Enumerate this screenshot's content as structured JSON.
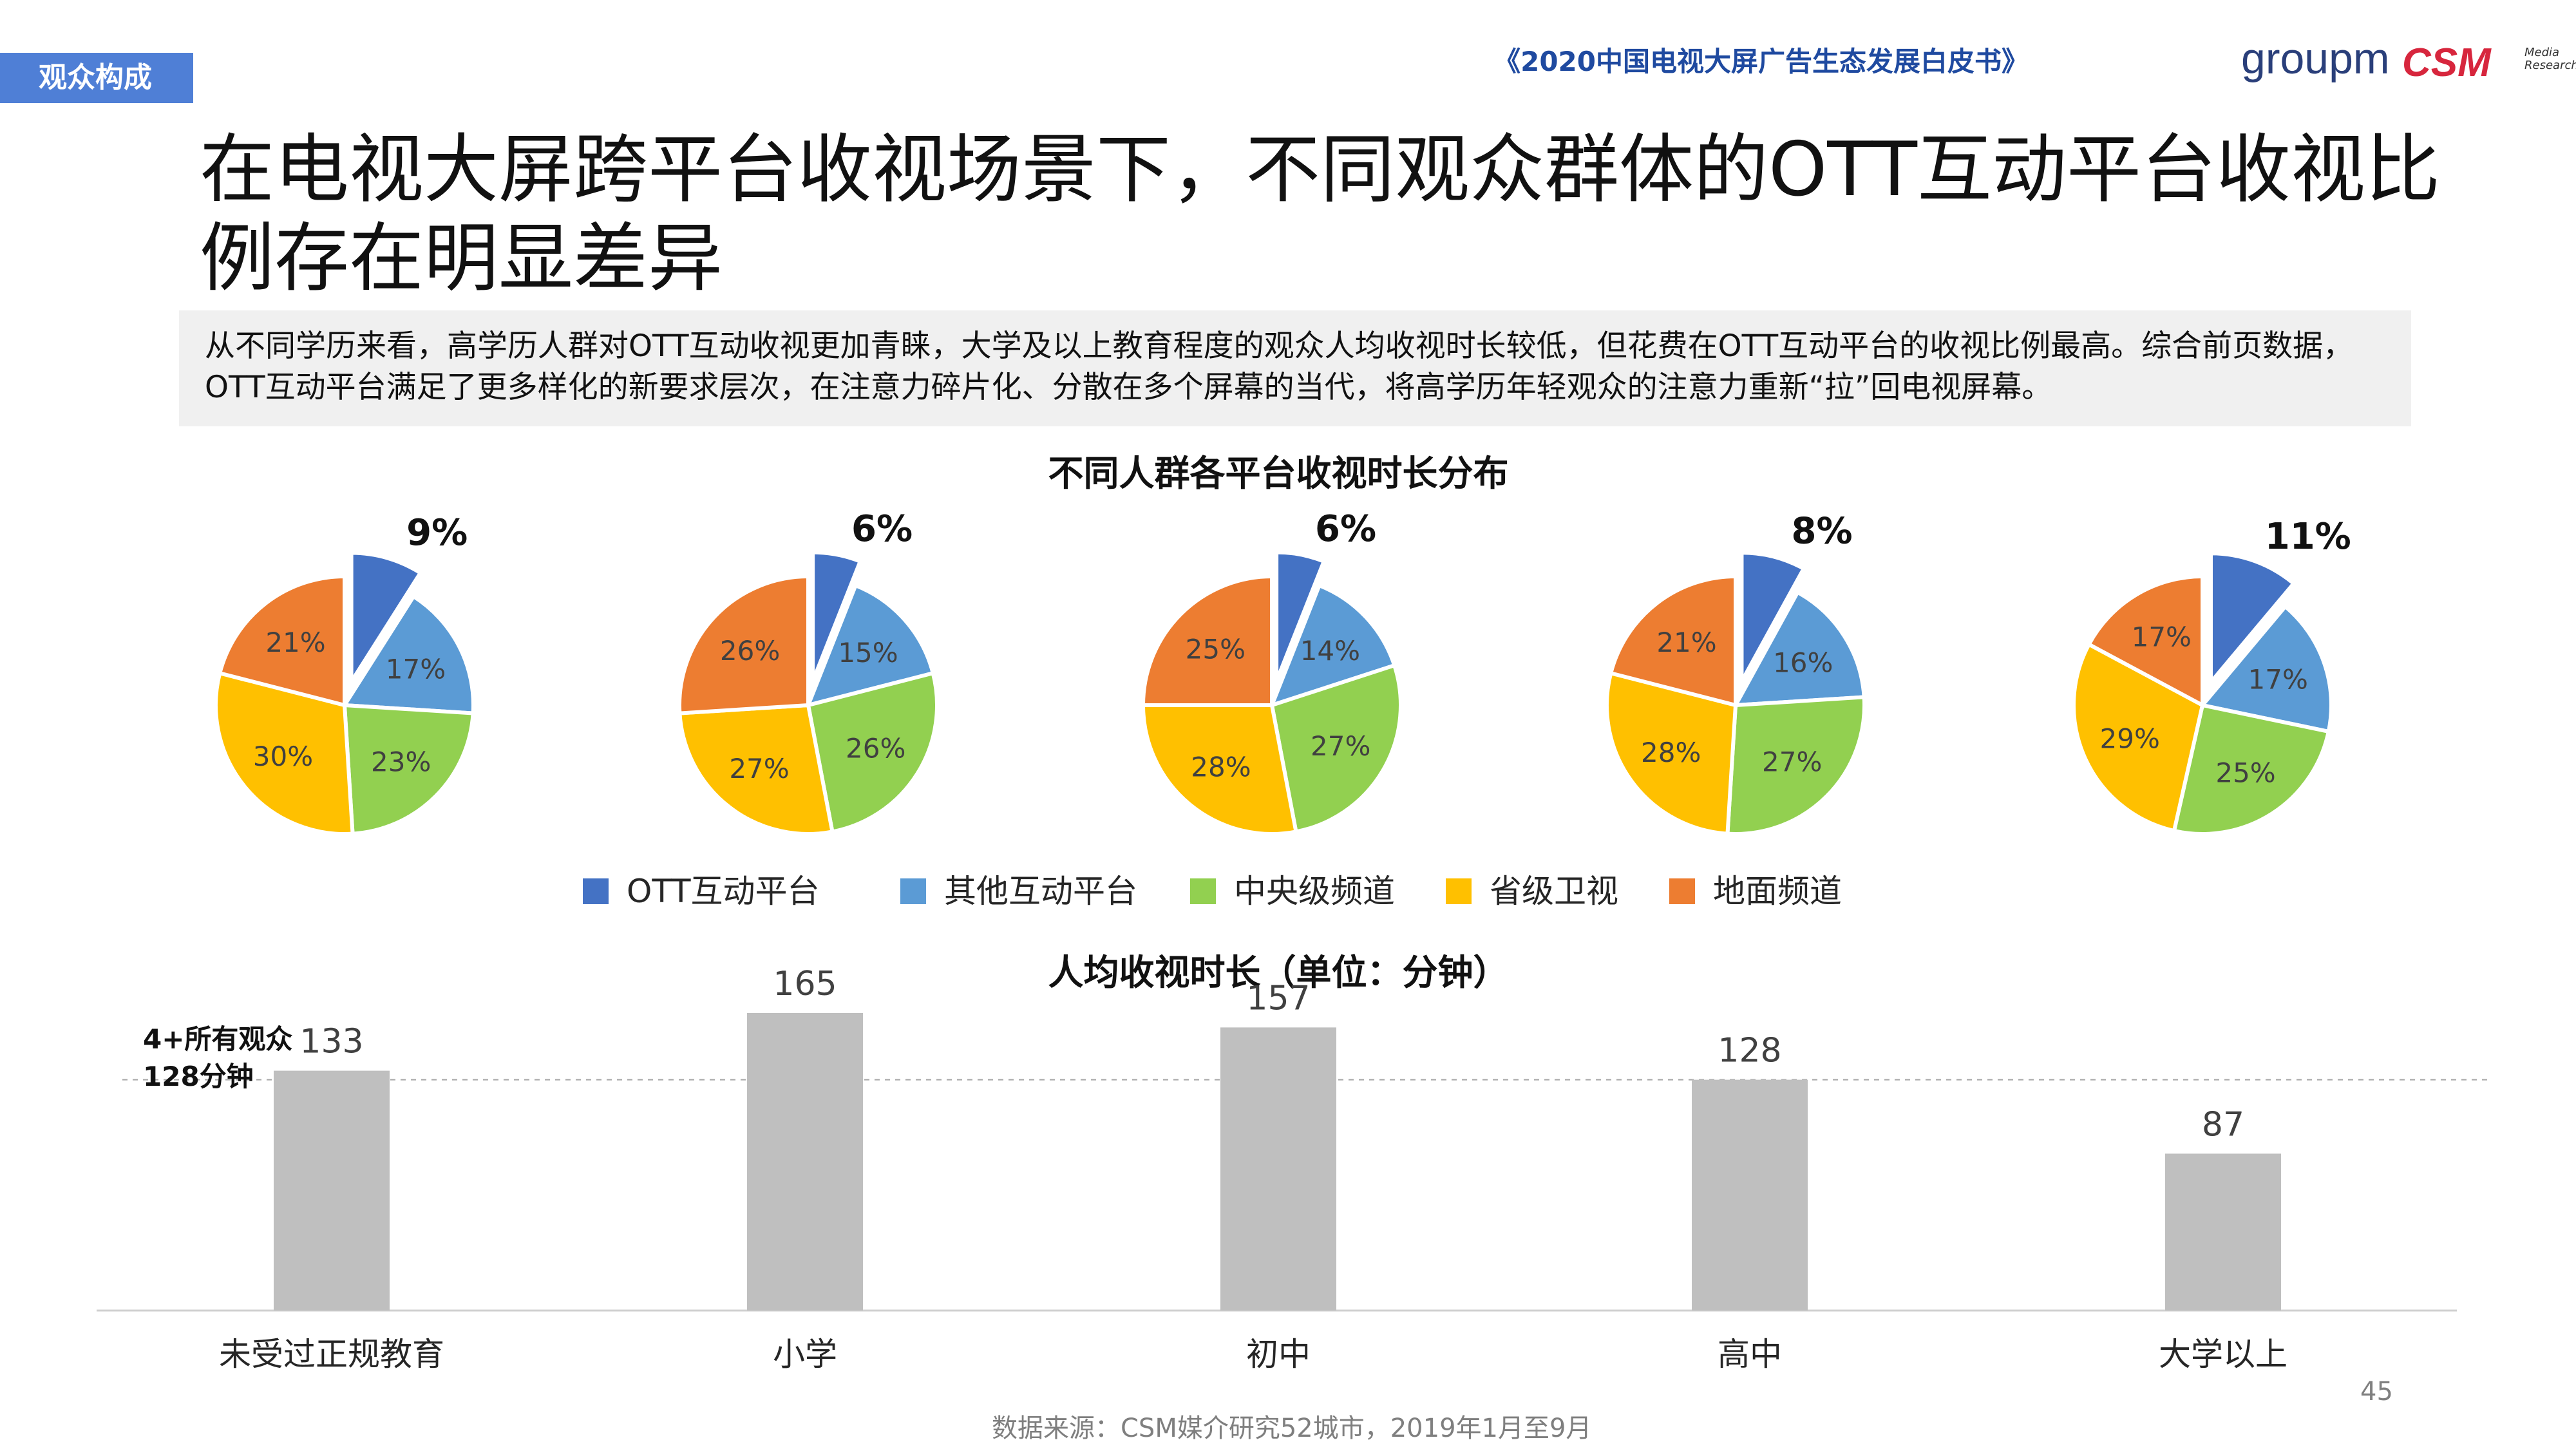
{
  "header": {
    "section_tab": "观众构成",
    "report_title": "《2020中国电视大屏广告生态发展白皮书》",
    "logo_groupm": "groupm",
    "logo_csm": "CSM",
    "logo_csm_sub": "Media Research"
  },
  "title": "在电视大屏跨平台收视场景下，不同观众群体的OTT互动平台收视比例存在明显差异",
  "intro": "从不同学历来看，高学历人群对OTT互动收视更加青睐，大学及以上教育程度的观众人均收视时长较低，但花费在OTT互动平台的收视比例最高。综合前页数据，OTT互动平台满足了更多样化的新要求层次，在注意力碎片化、分散在多个屏幕的当代，将高学历年轻观众的注意力重新“拉”回电视屏幕。",
  "colors": {
    "OTT互动平台": "#4472c4",
    "其他互动平台": "#5b9bd5",
    "中央级频道": "#92d050",
    "省级卫视": "#ffc000",
    "地面频道": "#ed7d31"
  },
  "chart_data": [
    {
      "type": "pie",
      "title": "不同人群各平台收视时长分布",
      "legend": [
        "OTT互动平台",
        "其他互动平台",
        "中央级频道",
        "省级卫视",
        "地面频道"
      ],
      "categories": [
        "未受过正规教育",
        "小学",
        "初中",
        "高中",
        "大学以上"
      ],
      "series": [
        {
          "values": [
            9,
            17,
            23,
            30,
            21
          ],
          "labels": [
            "9%",
            "17%",
            "23%",
            "30%",
            "21%"
          ]
        },
        {
          "values": [
            6,
            15,
            26,
            27,
            26
          ],
          "labels": [
            "6%",
            "15%",
            "26%",
            "27%",
            "26%"
          ]
        },
        {
          "values": [
            6,
            14,
            27,
            28,
            25
          ],
          "labels": [
            "6%",
            "14%",
            "27%",
            "28%",
            "25%"
          ]
        },
        {
          "values": [
            8,
            16,
            27,
            28,
            21
          ],
          "labels": [
            "8%",
            "16%",
            "27%",
            "28%",
            "21%"
          ]
        },
        {
          "values": [
            11,
            17,
            25,
            29,
            17
          ],
          "labels": [
            "11%",
            "17%",
            "25%",
            "29%",
            "17%"
          ]
        }
      ]
    },
    {
      "type": "bar",
      "title": "人均收视时长（单位：分钟）",
      "categories": [
        "未受过正规教育",
        "小学",
        "初中",
        "高中",
        "大学以上"
      ],
      "values": [
        133,
        165,
        157,
        128,
        87
      ],
      "reference_line": {
        "value": 128,
        "label_line1": "4+所有观众",
        "label_line2": "128分钟"
      },
      "bar_color": "#bfbfbf"
    }
  ],
  "footer": {
    "source": "数据来源：CSM媒介研究52城市，2019年1月至9月",
    "page": "45"
  }
}
